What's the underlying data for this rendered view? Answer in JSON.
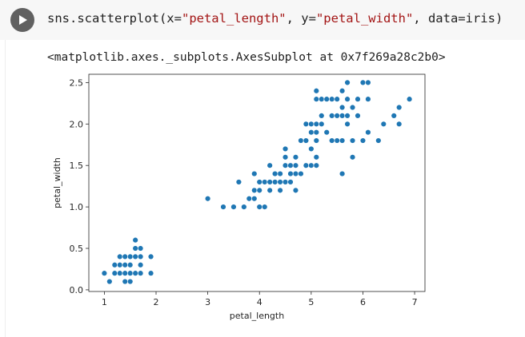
{
  "code_cell": {
    "code_parts": {
      "p1": "sns.scatterplot(x=",
      "s1": "\"petal_length\"",
      "p2": ", y=",
      "s2": "\"petal_width\"",
      "p3": ", data=iris)"
    }
  },
  "output": {
    "repr": "<matplotlib.axes._subplots.AxesSubplot at 0x7f269a28c2b0>"
  },
  "colors": {
    "marker": "#1f77b4",
    "run_button": "#616161"
  },
  "icons": {
    "run": "play-icon"
  },
  "chart_data": {
    "type": "scatter",
    "xlabel": "petal_length",
    "ylabel": "petal_width",
    "xlim": [
      0.7,
      7.2
    ],
    "ylim": [
      -0.02,
      2.6
    ],
    "xticks": [
      1,
      2,
      3,
      4,
      5,
      6,
      7
    ],
    "yticks": [
      0.0,
      0.5,
      1.0,
      1.5,
      2.0,
      2.5
    ],
    "ytick_labels": [
      "0.0",
      "0.5",
      "1.0",
      "1.5",
      "2.0",
      "2.5"
    ],
    "grid": false,
    "points": [
      [
        1.0,
        0.2
      ],
      [
        1.1,
        0.1
      ],
      [
        1.2,
        0.2
      ],
      [
        1.3,
        0.2
      ],
      [
        1.3,
        0.3
      ],
      [
        1.3,
        0.4
      ],
      [
        1.4,
        0.1
      ],
      [
        1.4,
        0.2
      ],
      [
        1.4,
        0.3
      ],
      [
        1.5,
        0.1
      ],
      [
        1.5,
        0.2
      ],
      [
        1.5,
        0.3
      ],
      [
        1.5,
        0.4
      ],
      [
        1.6,
        0.2
      ],
      [
        1.6,
        0.4
      ],
      [
        1.6,
        0.6
      ],
      [
        1.6,
        0.5
      ],
      [
        1.7,
        0.2
      ],
      [
        1.7,
        0.3
      ],
      [
        1.7,
        0.4
      ],
      [
        1.7,
        0.5
      ],
      [
        1.9,
        0.2
      ],
      [
        1.9,
        0.4
      ],
      [
        1.2,
        0.3
      ],
      [
        1.4,
        0.4
      ],
      [
        3.0,
        1.1
      ],
      [
        3.3,
        1.0
      ],
      [
        3.5,
        1.0
      ],
      [
        3.6,
        1.3
      ],
      [
        3.7,
        1.0
      ],
      [
        3.8,
        1.1
      ],
      [
        3.9,
        1.1
      ],
      [
        3.9,
        1.2
      ],
      [
        3.9,
        1.4
      ],
      [
        4.0,
        1.0
      ],
      [
        4.0,
        1.2
      ],
      [
        4.0,
        1.3
      ],
      [
        4.1,
        1.0
      ],
      [
        4.1,
        1.3
      ],
      [
        4.2,
        1.2
      ],
      [
        4.2,
        1.3
      ],
      [
        4.2,
        1.5
      ],
      [
        4.3,
        1.3
      ],
      [
        4.4,
        1.2
      ],
      [
        4.4,
        1.3
      ],
      [
        4.4,
        1.4
      ],
      [
        4.5,
        1.3
      ],
      [
        4.5,
        1.5
      ],
      [
        4.5,
        1.7
      ],
      [
        4.6,
        1.3
      ],
      [
        4.6,
        1.4
      ],
      [
        4.6,
        1.5
      ],
      [
        4.7,
        1.2
      ],
      [
        4.7,
        1.4
      ],
      [
        4.7,
        1.5
      ],
      [
        4.7,
        1.6
      ],
      [
        4.8,
        1.4
      ],
      [
        4.8,
        1.8
      ],
      [
        4.9,
        1.5
      ],
      [
        4.9,
        1.8
      ],
      [
        4.9,
        2.0
      ],
      [
        4.5,
        1.6
      ],
      [
        4.4,
        1.4
      ],
      [
        4.3,
        1.4
      ],
      [
        5.0,
        1.5
      ],
      [
        5.0,
        1.7
      ],
      [
        5.0,
        1.9
      ],
      [
        5.0,
        2.0
      ],
      [
        5.1,
        1.5
      ],
      [
        5.1,
        1.6
      ],
      [
        5.1,
        1.8
      ],
      [
        5.1,
        1.9
      ],
      [
        5.1,
        2.0
      ],
      [
        5.1,
        2.3
      ],
      [
        5.1,
        2.4
      ],
      [
        5.2,
        2.0
      ],
      [
        5.2,
        2.3
      ],
      [
        5.3,
        1.9
      ],
      [
        5.3,
        2.3
      ],
      [
        5.4,
        2.1
      ],
      [
        5.4,
        2.3
      ],
      [
        5.5,
        1.8
      ],
      [
        5.5,
        2.1
      ],
      [
        5.6,
        1.4
      ],
      [
        5.6,
        1.8
      ],
      [
        5.6,
        2.1
      ],
      [
        5.6,
        2.2
      ],
      [
        5.6,
        2.4
      ],
      [
        5.7,
        2.1
      ],
      [
        5.7,
        2.3
      ],
      [
        5.7,
        2.5
      ],
      [
        5.8,
        1.6
      ],
      [
        5.8,
        1.8
      ],
      [
        5.8,
        2.2
      ],
      [
        5.9,
        2.1
      ],
      [
        5.9,
        2.3
      ],
      [
        6.0,
        1.8
      ],
      [
        6.0,
        2.5
      ],
      [
        6.1,
        1.9
      ],
      [
        6.1,
        2.3
      ],
      [
        6.1,
        2.5
      ],
      [
        6.3,
        1.8
      ],
      [
        6.4,
        2.0
      ],
      [
        6.6,
        2.1
      ],
      [
        6.7,
        2.0
      ],
      [
        6.7,
        2.2
      ],
      [
        6.9,
        2.3
      ],
      [
        5.2,
        2.1
      ],
      [
        5.5,
        2.3
      ],
      [
        5.7,
        2.0
      ],
      [
        5.4,
        1.8
      ]
    ]
  }
}
